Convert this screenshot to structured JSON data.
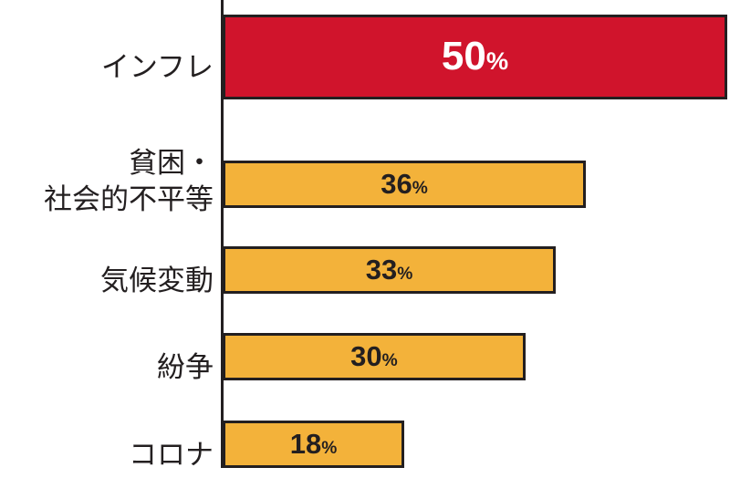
{
  "chart_data": {
    "type": "bar",
    "orientation": "horizontal",
    "categories": [
      "インフレ",
      "貧困・\n社会的不平等",
      "気候変動",
      "紛争",
      "コロナ"
    ],
    "values": [
      50,
      36,
      33,
      30,
      18
    ],
    "value_labels": [
      "50%",
      "36%",
      "33%",
      "30%",
      "18%"
    ],
    "colors": [
      "#d0142c",
      "#f3b23a",
      "#f3b23a",
      "#f3b23a",
      "#f3b23a"
    ],
    "xlim": [
      0,
      50
    ]
  }
}
